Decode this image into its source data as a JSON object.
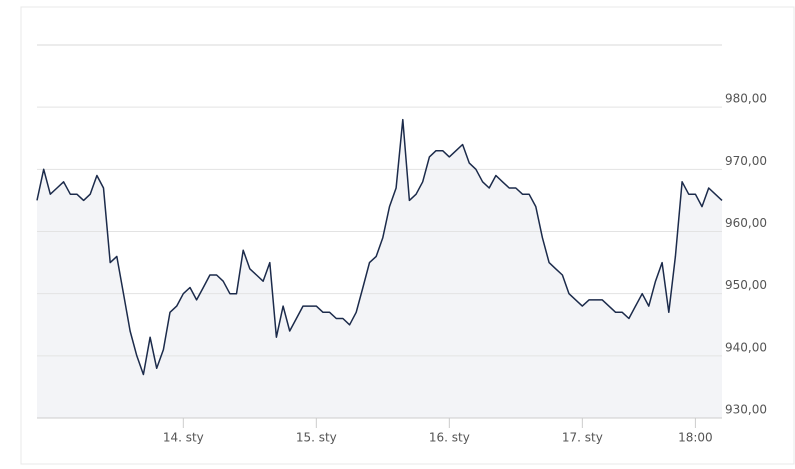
{
  "chart_data": {
    "type": "line",
    "categories": [
      null,
      null,
      null,
      null,
      null,
      null,
      null,
      null,
      null,
      null,
      null,
      null,
      null,
      null,
      null,
      null,
      null,
      null,
      null,
      null,
      null,
      null,
      "14. sty",
      null,
      null,
      null,
      null,
      null,
      null,
      null,
      null,
      null,
      null,
      null,
      null,
      null,
      null,
      null,
      null,
      null,
      null,
      null,
      "15. sty",
      null,
      null,
      null,
      null,
      null,
      null,
      null,
      null,
      null,
      null,
      null,
      null,
      null,
      null,
      null,
      null,
      null,
      null,
      null,
      "16. sty",
      null,
      null,
      null,
      null,
      null,
      null,
      null,
      null,
      null,
      null,
      null,
      null,
      null,
      null,
      null,
      null,
      null,
      null,
      null,
      "17. sty",
      null,
      null,
      null,
      null,
      null,
      null,
      null,
      null,
      null,
      null,
      null,
      null,
      null,
      null,
      null,
      null,
      "18:00",
      null,
      null,
      null,
      null
    ],
    "values": [
      965,
      970,
      966,
      967,
      968,
      966,
      966,
      965,
      966,
      969,
      967,
      955,
      956,
      950,
      944,
      940,
      937,
      943,
      938,
      941,
      947,
      948,
      950,
      951,
      949,
      951,
      953,
      953,
      952,
      950,
      950,
      957,
      954,
      953,
      952,
      955,
      943,
      948,
      944,
      946,
      948,
      948,
      948,
      947,
      947,
      946,
      946,
      945,
      947,
      951,
      955,
      956,
      959,
      964,
      967,
      978,
      965,
      966,
      968,
      972,
      973,
      973,
      972,
      973,
      974,
      971,
      970,
      968,
      967,
      969,
      968,
      967,
      967,
      966,
      966,
      964,
      959,
      955,
      954,
      953,
      950,
      949,
      948,
      949,
      949,
      949,
      948,
      947,
      947,
      946,
      948,
      950,
      948,
      952,
      955,
      947,
      956,
      968,
      966,
      966,
      964,
      967,
      966,
      965
    ],
    "color": "#1c2b4b",
    "fill": "#f3f4f7",
    "ylim": [
      930,
      990
    ],
    "yticks": [
      {
        "value": 930,
        "label": "930,00"
      },
      {
        "value": 940,
        "label": "940,00"
      },
      {
        "value": 950,
        "label": "950,00"
      },
      {
        "value": 960,
        "label": "960,00"
      },
      {
        "value": 970,
        "label": "970,00"
      },
      {
        "value": 980,
        "label": "980,00"
      }
    ],
    "grid": true
  }
}
